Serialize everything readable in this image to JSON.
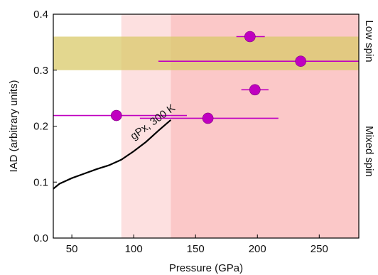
{
  "chart_data": {
    "type": "scatter",
    "xlabel": "Pressure (GPa)",
    "ylabel": "IAD (arbitrary units)",
    "xlim": [
      35,
      282
    ],
    "ylim": [
      0,
      0.4
    ],
    "xticks": [
      50,
      100,
      150,
      200,
      250
    ],
    "yticks": [
      0.0,
      0.1,
      0.2,
      0.3,
      0.4
    ],
    "ytick_labels": [
      "0.0",
      "0.1",
      "0.2",
      "0.3",
      "0.4"
    ],
    "right_labels": [
      "Low spin",
      "Mixed spin"
    ],
    "regions": [
      {
        "kind": "vspan",
        "x0": 90,
        "x1": 130,
        "color": "#fde0e0"
      },
      {
        "kind": "vspan",
        "x0": 130,
        "x1": 282,
        "color": "#fbc8c8"
      },
      {
        "kind": "hspan",
        "y0": 0.3,
        "y1": 0.36,
        "color": "#d9c96a"
      }
    ],
    "series": [
      {
        "marker_color": "#c000c0",
        "points": [
          {
            "x": 86,
            "y": 0.219,
            "xerr": [
              35,
              143
            ]
          },
          {
            "x": 160,
            "y": 0.214,
            "xerr": [
              105,
              217
            ]
          },
          {
            "x": 194,
            "y": 0.36,
            "xerr": [
              183,
              206
            ]
          },
          {
            "x": 198,
            "y": 0.265,
            "xerr": [
              187,
              209
            ]
          },
          {
            "x": 235,
            "y": 0.316,
            "xerr": [
              120,
              282
            ]
          }
        ]
      },
      {
        "line_color": "#000000",
        "x": [
          35,
          40,
          50,
          60,
          70,
          80,
          90,
          100,
          110,
          120,
          130
        ],
        "y": [
          0.088,
          0.097,
          0.107,
          0.115,
          0.123,
          0.13,
          0.14,
          0.155,
          0.172,
          0.192,
          0.211
        ],
        "annotation": "gPx, 300 K"
      }
    ]
  }
}
